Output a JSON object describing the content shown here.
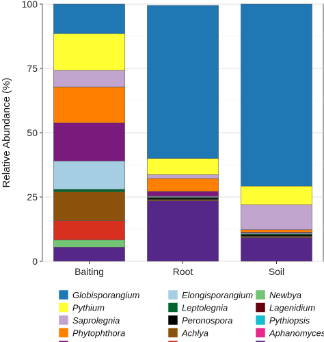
{
  "chart_data": {
    "type": "bar",
    "stacked": true,
    "ylabel": "Relative Abundance (%)",
    "xlabel": "",
    "ylim": [
      0,
      100
    ],
    "yticks": [
      0,
      25,
      50,
      75,
      100
    ],
    "grid": true,
    "legend_position": "bottom",
    "categories": [
      "Baiting",
      "Root",
      "Soil"
    ],
    "series": [
      {
        "name": "Other",
        "color": "#542788",
        "values": [
          5.5,
          23.5,
          9.2
        ]
      },
      {
        "name": "Aphanomyces",
        "color": "#e7298a",
        "values": [
          0,
          0,
          0
        ]
      },
      {
        "name": "Lagenidium",
        "color": "#67000d",
        "values": [
          0,
          0,
          0
        ]
      },
      {
        "name": "Pythiopsis",
        "color": "#17becf",
        "values": [
          0,
          0,
          0
        ]
      },
      {
        "name": "Newbya",
        "color": "#74c476",
        "values": [
          2.8,
          0,
          0
        ]
      },
      {
        "name": "Thraustotheca",
        "color": "#d7301f",
        "values": [
          7.5,
          0,
          0
        ]
      },
      {
        "name": "Achlya",
        "color": "#8c510a",
        "values": [
          11.2,
          0.5,
          0.5
        ]
      },
      {
        "name": "Peronospora",
        "color": "#000000",
        "values": [
          0,
          0.6,
          0.6
        ]
      },
      {
        "name": "Leptolegnia",
        "color": "#00642d",
        "values": [
          1,
          0.3,
          0.4
        ]
      },
      {
        "name": "Elongisporangium",
        "color": "#a6cee3",
        "values": [
          11,
          0.3,
          0.3
        ]
      },
      {
        "name": "Phytopythium",
        "color": "#7b1a7d",
        "values": [
          14.8,
          2,
          0.3
        ]
      },
      {
        "name": "Phytophthora",
        "color": "#ff7f00",
        "values": [
          14,
          5,
          1
        ]
      },
      {
        "name": "Saprolegnia",
        "color": "#c2a5cf",
        "values": [
          6.5,
          1.5,
          9.7
        ]
      },
      {
        "name": "Pythium",
        "color": "#ffff33",
        "values": [
          14.2,
          6.3,
          7.2
        ]
      },
      {
        "name": "Globisporangium",
        "color": "#1f78b4",
        "values": [
          11.5,
          59.5,
          70.8
        ]
      }
    ],
    "legend_order": [
      "Globisporangium",
      "Pythium",
      "Saprolegnia",
      "Phytophthora",
      "Phytopythium",
      "Elongisporangium",
      "Leptolegnia",
      "Peronospora",
      "Achlya",
      "Thraustotheca",
      "Newbya",
      "Lagenidium",
      "Pythiopsis",
      "Aphanomyces",
      "Other"
    ]
  }
}
